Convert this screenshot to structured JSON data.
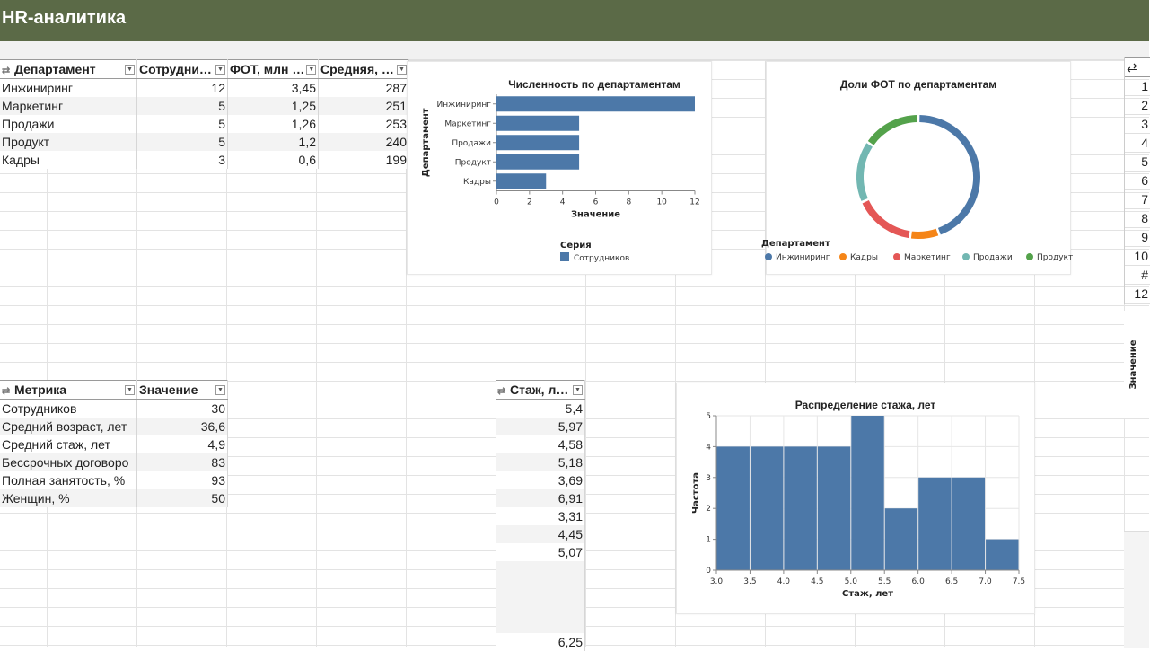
{
  "app": {
    "title": "HR-аналитика"
  },
  "dept_table": {
    "headers": [
      "Департамент",
      "Сотрудни…",
      "ФОТ, млн …",
      "Средняя, …"
    ],
    "rows": [
      [
        "Инжиниринг",
        "12",
        "3,45",
        "287"
      ],
      [
        "Маркетинг",
        "5",
        "1,25",
        "251"
      ],
      [
        "Продажи",
        "5",
        "1,26",
        "253"
      ],
      [
        "Продукт",
        "5",
        "1,2",
        "240"
      ],
      [
        "Кадры",
        "3",
        "0,6",
        "199"
      ]
    ]
  },
  "metric_table": {
    "headers": [
      "Метрика",
      "Значение"
    ],
    "rows": [
      [
        "Сотрудников",
        "30"
      ],
      [
        "Средний возраст, лет",
        "36,6"
      ],
      [
        "Средний стаж, лет",
        "4,9"
      ],
      [
        "Бессрочных договоро",
        "83"
      ],
      [
        "Полная занятость, %",
        "93"
      ],
      [
        "Женщин, %",
        "50"
      ]
    ]
  },
  "tenure_table": {
    "header": "Стаж, л…",
    "values": [
      "5,4",
      "5,97",
      "4,58",
      "5,18",
      "3,69",
      "6,91",
      "3,31",
      "4,45",
      "5,07"
    ],
    "last_value": "6,25"
  },
  "right_table": {
    "values": [
      "1",
      "2",
      "3",
      "4",
      "5",
      "6",
      "7",
      "8",
      "9",
      "10",
      "#",
      "12"
    ],
    "axis_label": "Значение"
  },
  "chart_data": [
    {
      "id": "headcount",
      "type": "bar",
      "orientation": "horizontal",
      "title": "Численность по департаментам",
      "categories": [
        "Инжиниринг",
        "Маркетинг",
        "Продажи",
        "Продукт",
        "Кадры"
      ],
      "series": [
        {
          "name": "Сотрудников",
          "values": [
            12,
            5,
            5,
            5,
            3
          ]
        }
      ],
      "xlabel": "Значение",
      "ylabel": "Департамент",
      "xlim": [
        0,
        12
      ],
      "xticks": [
        0,
        2,
        4,
        6,
        8,
        10,
        12
      ],
      "legend_title": "Серия",
      "color": "#4c78a8"
    },
    {
      "id": "payroll_share",
      "type": "pie",
      "donut": true,
      "title": "Доли ФОТ по департаментам",
      "legend_title": "Департамент",
      "legend": [
        "Инжиниринг",
        "Кадры",
        "Маркетинг",
        "Продажи",
        "Продукт"
      ],
      "slices": [
        {
          "label": "Инжиниринг",
          "value": 3.45,
          "color": "#4c78a8"
        },
        {
          "label": "Кадры",
          "value": 0.6,
          "color": "#f58518"
        },
        {
          "label": "Маркетинг",
          "value": 1.25,
          "color": "#e45756"
        },
        {
          "label": "Продажи",
          "value": 1.26,
          "color": "#72b7b2"
        },
        {
          "label": "Продукт",
          "value": 1.2,
          "color": "#54a24b"
        }
      ]
    },
    {
      "id": "tenure_hist",
      "type": "bar",
      "histogram": true,
      "title": "Распределение стажа, лет",
      "bins": [
        {
          "from": 3.0,
          "to": 3.5,
          "count": 4
        },
        {
          "from": 3.5,
          "to": 4.0,
          "count": 4
        },
        {
          "from": 4.0,
          "to": 4.5,
          "count": 4
        },
        {
          "from": 4.5,
          "to": 5.0,
          "count": 4
        },
        {
          "from": 5.0,
          "to": 5.5,
          "count": 5
        },
        {
          "from": 5.5,
          "to": 6.0,
          "count": 2
        },
        {
          "from": 6.0,
          "to": 6.5,
          "count": 3
        },
        {
          "from": 6.5,
          "to": 7.0,
          "count": 3
        },
        {
          "from": 7.0,
          "to": 7.5,
          "count": 1
        }
      ],
      "xlabel": "Стаж, лет",
      "ylabel": "Частота",
      "xlim": [
        3.0,
        7.5
      ],
      "ylim": [
        0,
        5
      ],
      "xticks": [
        "3.0",
        "3.5",
        "4.0",
        "4.5",
        "5.0",
        "5.5",
        "6.0",
        "6.5",
        "7.0",
        "7.5"
      ],
      "yticks": [
        0,
        1,
        2,
        3,
        4,
        5
      ],
      "grid": true,
      "color": "#4c78a8"
    }
  ]
}
